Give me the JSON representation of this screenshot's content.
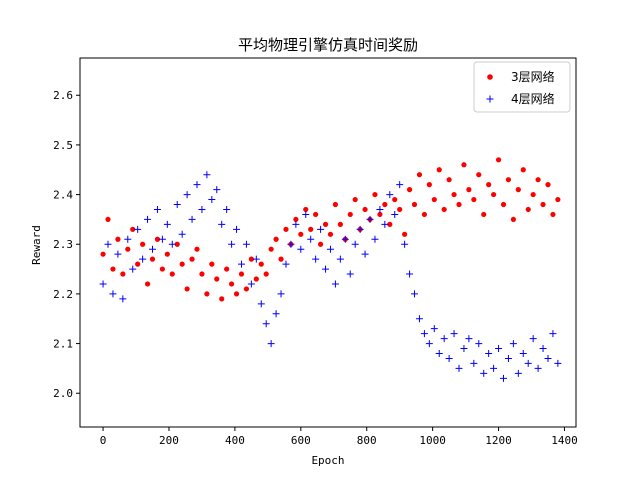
{
  "chart_data": {
    "type": "scatter",
    "title": "平均物理引擎仿真时间奖励",
    "xlabel": "Epoch",
    "ylabel": "Reward",
    "xlim": [
      -70,
      1435
    ],
    "ylim": [
      1.932,
      2.675
    ],
    "x_ticks": [
      0,
      200,
      400,
      600,
      800,
      1000,
      1200,
      1400
    ],
    "x_tick_labels": [
      "0",
      "200",
      "400",
      "600",
      "800",
      "1000",
      "1200",
      "1400"
    ],
    "y_ticks": [
      2.0,
      2.1,
      2.2,
      2.3,
      2.4,
      2.5,
      2.6
    ],
    "y_tick_labels": [
      "2.0",
      "2.1",
      "2.2",
      "2.3",
      "2.4",
      "2.5",
      "2.6"
    ],
    "legend_position": "top-right",
    "sampling_note": "approx. 15-epoch sample of ~1400 epochs per series",
    "series": [
      {
        "name": "3层网络",
        "marker": "circle",
        "color": "#ff0000",
        "x": [
          0,
          15,
          30,
          45,
          60,
          75,
          90,
          105,
          120,
          135,
          150,
          165,
          180,
          195,
          210,
          225,
          240,
          255,
          270,
          285,
          300,
          315,
          330,
          345,
          360,
          375,
          390,
          405,
          420,
          435,
          450,
          465,
          480,
          495,
          510,
          525,
          540,
          555,
          570,
          585,
          600,
          615,
          630,
          645,
          660,
          675,
          690,
          705,
          720,
          735,
          750,
          765,
          780,
          795,
          810,
          825,
          840,
          855,
          870,
          885,
          900,
          915,
          930,
          945,
          960,
          975,
          990,
          1005,
          1020,
          1035,
          1050,
          1065,
          1080,
          1095,
          1110,
          1125,
          1140,
          1155,
          1170,
          1185,
          1200,
          1215,
          1230,
          1245,
          1260,
          1275,
          1290,
          1305,
          1320,
          1335,
          1350,
          1365,
          1380
        ],
        "y": [
          2.28,
          2.35,
          2.25,
          2.31,
          2.24,
          2.29,
          2.33,
          2.26,
          2.3,
          2.22,
          2.27,
          2.31,
          2.25,
          2.28,
          2.24,
          2.3,
          2.26,
          2.21,
          2.27,
          2.29,
          2.24,
          2.2,
          2.26,
          2.23,
          2.19,
          2.25,
          2.22,
          2.2,
          2.24,
          2.21,
          2.27,
          2.23,
          2.26,
          2.24,
          2.29,
          2.31,
          2.27,
          2.33,
          2.3,
          2.35,
          2.32,
          2.37,
          2.33,
          2.36,
          2.3,
          2.34,
          2.32,
          2.38,
          2.34,
          2.31,
          2.36,
          2.39,
          2.33,
          2.37,
          2.35,
          2.4,
          2.36,
          2.38,
          2.34,
          2.39,
          2.37,
          2.32,
          2.41,
          2.38,
          2.44,
          2.36,
          2.42,
          2.39,
          2.45,
          2.37,
          2.43,
          2.4,
          2.38,
          2.46,
          2.41,
          2.39,
          2.44,
          2.36,
          2.42,
          2.4,
          2.47,
          2.38,
          2.43,
          2.35,
          2.41,
          2.45,
          2.37,
          2.4,
          2.43,
          2.38,
          2.42,
          2.36,
          2.39
        ]
      },
      {
        "name": "4层网络",
        "marker": "plus",
        "color": "#0000ff",
        "x": [
          0,
          15,
          30,
          45,
          60,
          75,
          90,
          105,
          120,
          135,
          150,
          165,
          180,
          195,
          210,
          225,
          240,
          255,
          270,
          285,
          300,
          315,
          330,
          345,
          360,
          375,
          390,
          405,
          420,
          435,
          450,
          465,
          480,
          495,
          510,
          525,
          540,
          555,
          570,
          585,
          600,
          615,
          630,
          645,
          660,
          675,
          690,
          705,
          720,
          735,
          750,
          765,
          780,
          795,
          810,
          825,
          840,
          855,
          870,
          885,
          900,
          915,
          930,
          945,
          960,
          975,
          990,
          1005,
          1020,
          1035,
          1050,
          1065,
          1080,
          1095,
          1110,
          1125,
          1140,
          1155,
          1170,
          1185,
          1200,
          1215,
          1230,
          1245,
          1260,
          1275,
          1290,
          1305,
          1320,
          1335,
          1350,
          1365,
          1380
        ],
        "y": [
          2.22,
          2.3,
          2.2,
          2.28,
          2.19,
          2.31,
          2.25,
          2.33,
          2.27,
          2.35,
          2.29,
          2.37,
          2.31,
          2.34,
          2.3,
          2.38,
          2.32,
          2.4,
          2.35,
          2.42,
          2.37,
          2.44,
          2.39,
          2.41,
          2.34,
          2.37,
          2.3,
          2.33,
          2.26,
          2.3,
          2.22,
          2.27,
          2.18,
          2.14,
          2.1,
          2.16,
          2.2,
          2.26,
          2.3,
          2.34,
          2.29,
          2.36,
          2.31,
          2.27,
          2.33,
          2.25,
          2.29,
          2.22,
          2.27,
          2.31,
          2.24,
          2.3,
          2.33,
          2.28,
          2.35,
          2.31,
          2.37,
          2.34,
          2.4,
          2.36,
          2.42,
          2.3,
          2.24,
          2.2,
          2.15,
          2.12,
          2.1,
          2.13,
          2.08,
          2.11,
          2.07,
          2.12,
          2.05,
          2.09,
          2.11,
          2.06,
          2.1,
          2.04,
          2.08,
          2.05,
          2.09,
          2.03,
          2.07,
          2.1,
          2.04,
          2.08,
          2.06,
          2.11,
          2.05,
          2.09,
          2.07,
          2.12,
          2.06
        ]
      }
    ]
  }
}
